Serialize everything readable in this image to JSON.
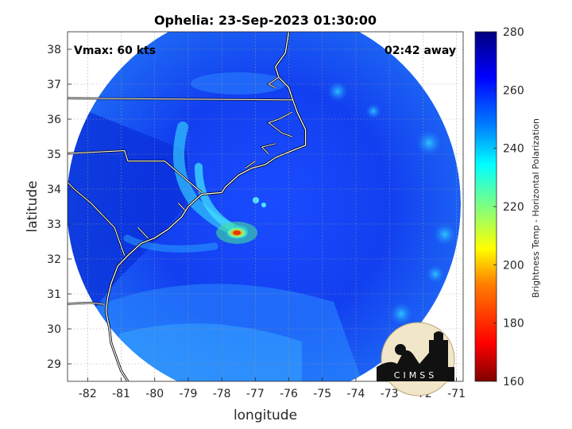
{
  "chart_data": {
    "type": "heatmap",
    "title": "Ophelia: 23-Sep-2023 01:30:00",
    "xlabel": "longitude",
    "ylabel": "latitude",
    "xlim": [
      -82.6,
      -70.8
    ],
    "ylim": [
      28.5,
      38.5
    ],
    "x_ticks": [
      -82,
      -81,
      -80,
      -79,
      -78,
      -77,
      -76,
      -75,
      -74,
      -73,
      -72,
      -71
    ],
    "y_ticks": [
      29,
      30,
      31,
      32,
      33,
      34,
      35,
      36,
      37,
      38
    ],
    "annotations": {
      "vmax": "Vmax: 60 kts",
      "time_away": "02:42 away"
    },
    "storm_center": {
      "lon": -77.4,
      "lat": 32.9
    },
    "colorbar": {
      "label": "Brightness Temp - Horizontal Polarization",
      "range": [
        160,
        280
      ],
      "ticks": [
        160,
        180,
        200,
        220,
        240,
        260,
        280
      ],
      "colormap": [
        "#7f0000",
        "#ff0000",
        "#ff8000",
        "#ffff00",
        "#80ff80",
        "#00ffff",
        "#0080ff",
        "#0000ff",
        "#00007f"
      ]
    },
    "swath": {
      "center_lon": -76.1,
      "center_lat": 33.5,
      "background_temp": 258
    },
    "features": [
      {
        "name": "warm-core",
        "lon": -77.55,
        "lat": 32.75,
        "temp": 200
      },
      {
        "name": "rainband-inner",
        "lon": -78.3,
        "lat": 33.2,
        "temp": 232
      },
      {
        "name": "rainband-outer",
        "lon": -79.3,
        "lat": 35.0,
        "temp": 238
      }
    ],
    "grid": true
  },
  "logo": {
    "text": "CIMSS"
  }
}
